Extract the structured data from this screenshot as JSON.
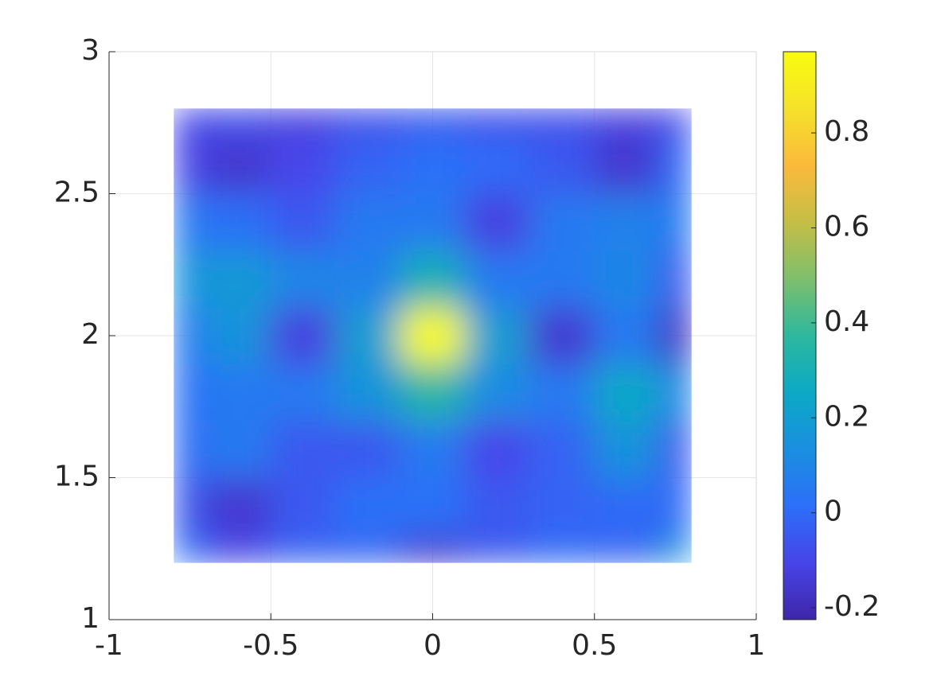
{
  "chart_data": {
    "type": "heatmap",
    "x": [
      -0.8,
      -0.6,
      -0.4,
      -0.2,
      0,
      0.2,
      0.4,
      0.6,
      0.8
    ],
    "y": [
      1.2,
      1.4,
      1.6,
      1.8,
      2.0,
      2.2,
      2.4,
      2.6,
      2.8
    ],
    "values": [
      [
        0.02,
        -0.1,
        -0.02,
        -0.02,
        -0.15,
        -0.05,
        0.0,
        -0.02,
        0.15
      ],
      [
        -0.05,
        -0.15,
        -0.05,
        0.02,
        0.02,
        -0.05,
        -0.02,
        0.0,
        0.0
      ],
      [
        0.0,
        0.05,
        -0.05,
        -0.05,
        0.05,
        -0.1,
        -0.02,
        0.15,
        -0.05
      ],
      [
        0.02,
        0.05,
        0.05,
        0.15,
        0.35,
        0.12,
        0.05,
        0.25,
        0.1
      ],
      [
        0.05,
        0.15,
        -0.12,
        0.2,
        0.97,
        0.2,
        -0.15,
        0.05,
        -0.18
      ],
      [
        0.15,
        0.18,
        0.1,
        0.08,
        0.3,
        0.05,
        0.05,
        0.1,
        -0.05
      ],
      [
        0.05,
        0.02,
        -0.05,
        0.05,
        0.05,
        -0.12,
        0.05,
        0.08,
        0.05
      ],
      [
        -0.1,
        -0.15,
        -0.1,
        -0.02,
        0.02,
        0.0,
        -0.05,
        -0.15,
        0.0
      ],
      [
        -0.1,
        -0.08,
        -0.12,
        -0.08,
        -0.05,
        -0.08,
        -0.08,
        -0.12,
        -0.1
      ]
    ],
    "xlim": [
      -1,
      1
    ],
    "xticks": [
      -1,
      -0.5,
      0,
      0.5,
      1
    ],
    "ylim": [
      1,
      3
    ],
    "yticks": [
      1,
      1.5,
      2,
      2.5,
      3
    ],
    "clim": [
      -0.225,
      0.971
    ],
    "cticks": [
      -0.2,
      0,
      0.2,
      0.4,
      0.6,
      0.8
    ],
    "colormap": [
      "#3e26a8",
      "#4744e8",
      "#2c6ff8",
      "#1a8fe0",
      "#0ba9c5",
      "#2db89e",
      "#7ebf6c",
      "#c5be46",
      "#fbba3c",
      "#f5e22a",
      "#f9fb0e"
    ],
    "grid": true
  }
}
